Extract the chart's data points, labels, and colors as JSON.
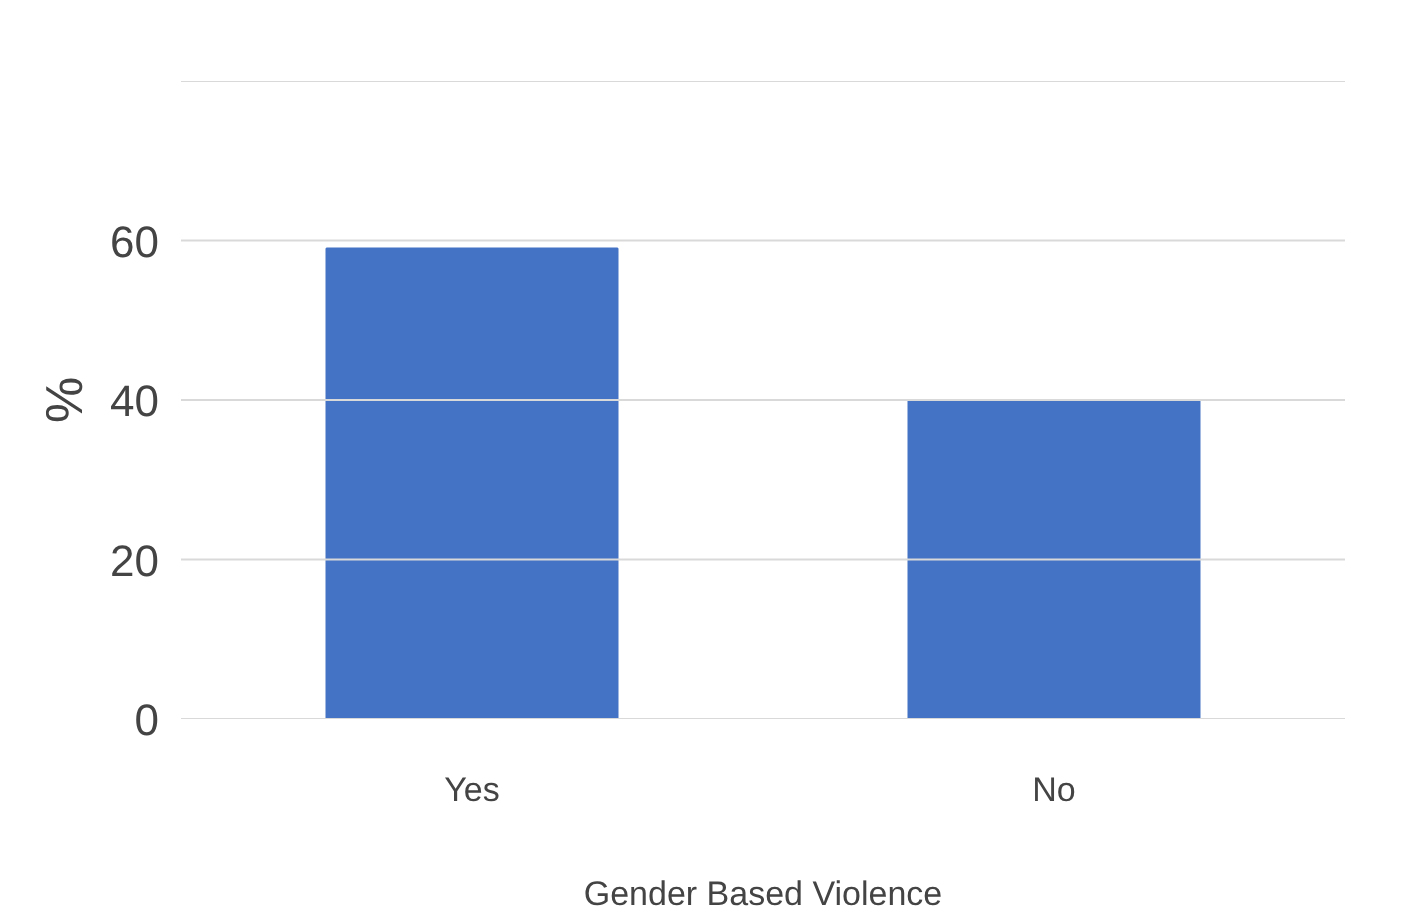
{
  "chart_data": {
    "type": "bar",
    "xlabel": "Gender Based Violence",
    "ylabel": "%",
    "categories": [
      "Yes",
      "No"
    ],
    "values": [
      59,
      40
    ],
    "color": "#4472c4",
    "ylim": [
      0,
      80
    ],
    "yticks": [
      0,
      20,
      40,
      60,
      {
        "value": 80,
        "label": null
      }
    ],
    "grid": "y"
  }
}
